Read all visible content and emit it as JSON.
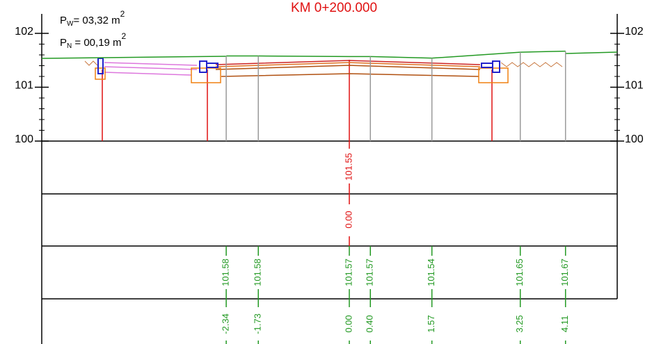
{
  "title": "KM 0+200.000",
  "areas": [
    {
      "symbol": "P",
      "sub": "W",
      "text": "= 03,32 m",
      "sup": "2"
    },
    {
      "symbol": "P",
      "sub": "N",
      "text": " = 00,19 m",
      "sup": "2"
    }
  ],
  "elevation_ticks": [
    102,
    101,
    100
  ],
  "center": {
    "design_elevation": "101.55",
    "depth": "0.00"
  },
  "points": [
    {
      "offset": "-2.34",
      "elevation": "101.58"
    },
    {
      "offset": "-1.73",
      "elevation": "101.58"
    },
    {
      "offset": "0.00",
      "elevation": "101.57"
    },
    {
      "offset": "0.40",
      "elevation": "101.57"
    },
    {
      "offset": "1.57",
      "elevation": "101.54"
    },
    {
      "offset": "3.25",
      "elevation": "101.65"
    },
    {
      "offset": "4.11",
      "elevation": "101.67"
    }
  ]
}
